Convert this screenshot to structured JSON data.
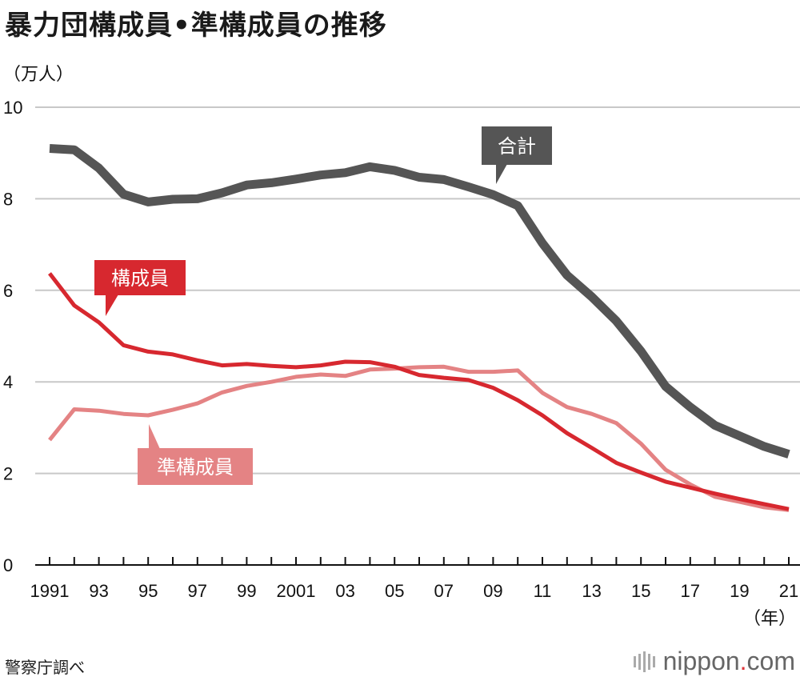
{
  "title": "暴力団構成員•準構成員の推移",
  "source": "警察庁調べ",
  "brand": {
    "prefix": "nippon",
    "dot": ".",
    "suffix": "com"
  },
  "colors": {
    "total": "#555555",
    "members": "#d7282f",
    "quasi": "#e48384",
    "grid": "#c8c8c8",
    "axis": "#111111"
  },
  "chart_data": {
    "type": "line",
    "title": "暴力団構成員•準構成員の推移",
    "ylabel": "（万人）",
    "xlabel": "（年）",
    "ylim": [
      0,
      10
    ],
    "yticks": [
      "0",
      "2",
      "4",
      "6",
      "8",
      "10"
    ],
    "x": [
      1991,
      1992,
      1993,
      1994,
      1995,
      1996,
      1997,
      1998,
      1999,
      2000,
      2001,
      2002,
      2003,
      2004,
      2005,
      2006,
      2007,
      2008,
      2009,
      2010,
      2011,
      2012,
      2013,
      2014,
      2015,
      2016,
      2017,
      2018,
      2019,
      2020,
      2021
    ],
    "xticklabels": [
      "1991",
      "93",
      "95",
      "97",
      "99",
      "2001",
      "03",
      "05",
      "07",
      "09",
      "11",
      "13",
      "15",
      "17",
      "19",
      "21"
    ],
    "xtickyears": [
      1991,
      1993,
      1995,
      1997,
      1999,
      2001,
      2003,
      2005,
      2007,
      2009,
      2011,
      2013,
      2015,
      2017,
      2019,
      2021
    ],
    "series": [
      {
        "name": "合計",
        "key": "total",
        "values": [
          9.1,
          9.07,
          8.67,
          8.1,
          7.93,
          7.99,
          8.0,
          8.13,
          8.3,
          8.35,
          8.43,
          8.52,
          8.57,
          8.7,
          8.62,
          8.47,
          8.42,
          8.26,
          8.09,
          7.85,
          7.03,
          6.33,
          5.86,
          5.33,
          4.67,
          3.9,
          3.45,
          3.05,
          2.82,
          2.59,
          2.42
        ]
      },
      {
        "name": "構成員",
        "key": "members",
        "values": [
          6.37,
          5.67,
          5.3,
          4.8,
          4.66,
          4.6,
          4.47,
          4.36,
          4.39,
          4.35,
          4.32,
          4.36,
          4.44,
          4.43,
          4.33,
          4.15,
          4.09,
          4.04,
          3.87,
          3.6,
          3.27,
          2.88,
          2.56,
          2.23,
          2.02,
          1.82,
          1.69,
          1.56,
          1.44,
          1.33,
          1.22
        ]
      },
      {
        "name": "準構成員",
        "key": "quasi",
        "values": [
          2.73,
          3.4,
          3.37,
          3.3,
          3.27,
          3.39,
          3.53,
          3.77,
          3.91,
          4.0,
          4.11,
          4.16,
          4.13,
          4.27,
          4.29,
          4.32,
          4.33,
          4.22,
          4.22,
          4.25,
          3.76,
          3.45,
          3.3,
          3.1,
          2.65,
          2.08,
          1.76,
          1.49,
          1.38,
          1.26,
          1.2
        ]
      }
    ]
  }
}
